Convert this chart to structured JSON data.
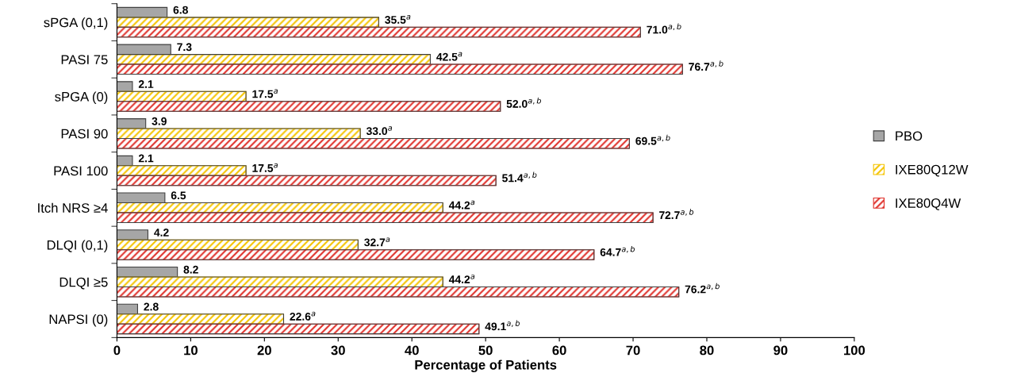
{
  "chart_data": {
    "type": "bar",
    "orientation": "horizontal",
    "xlabel": "Percentage of Patients",
    "categories": [
      "sPGA (0,1)",
      "PASI 75",
      "sPGA (0)",
      "PASI 90",
      "PASI 100",
      "Itch NRS ≥4",
      "DLQI (0,1)",
      "DLQI ≥5",
      "NAPSI (0)"
    ],
    "series": [
      {
        "name": "PBO",
        "color": "#a6a6a6",
        "values": [
          6.8,
          7.3,
          2.1,
          3.9,
          2.1,
          6.5,
          4.2,
          8.2,
          2.8
        ],
        "value_labels": [
          "6.8",
          "7.3",
          "2.1",
          "3.9",
          "2.1",
          "6.5",
          "4.2",
          "8.2",
          "2.8"
        ]
      },
      {
        "name": "IXE80Q12W",
        "color": "#f5c400",
        "values": [
          35.5,
          42.5,
          17.5,
          33.0,
          17.5,
          44.2,
          32.7,
          44.2,
          22.6
        ],
        "value_labels": [
          "35.5$^{a}$",
          "42.5$^{a}$",
          "17.5$^{a}$",
          "33.0$^{a}$",
          "17.5$^{a}$",
          "44.2$^{a}$",
          "32.7$^{a}$",
          "44.2$^{a}$",
          "22.6$^{a}$"
        ]
      },
      {
        "name": "IXE80Q4W",
        "color": "#e0302a",
        "values": [
          71.0,
          76.7,
          52.0,
          69.5,
          51.4,
          72.7,
          64.7,
          76.2,
          49.1
        ],
        "value_labels": [
          "71.0$^{a,b}$",
          "76.7$^{a,b}$",
          "52.0$^{a,b}$",
          "69.5$^{a,b}$",
          "51.4$^{a,b}$",
          "72.7$^{a,b}$",
          "64.7$^{a,b}$",
          "76.2$^{a,b}$",
          "49.1$^{a,b}$"
        ]
      }
    ],
    "xlim": [
      0,
      100
    ],
    "xticks": [
      0,
      10,
      20,
      30,
      40,
      50,
      60,
      70,
      80,
      90,
      100
    ],
    "grid": false,
    "legend": "right"
  }
}
